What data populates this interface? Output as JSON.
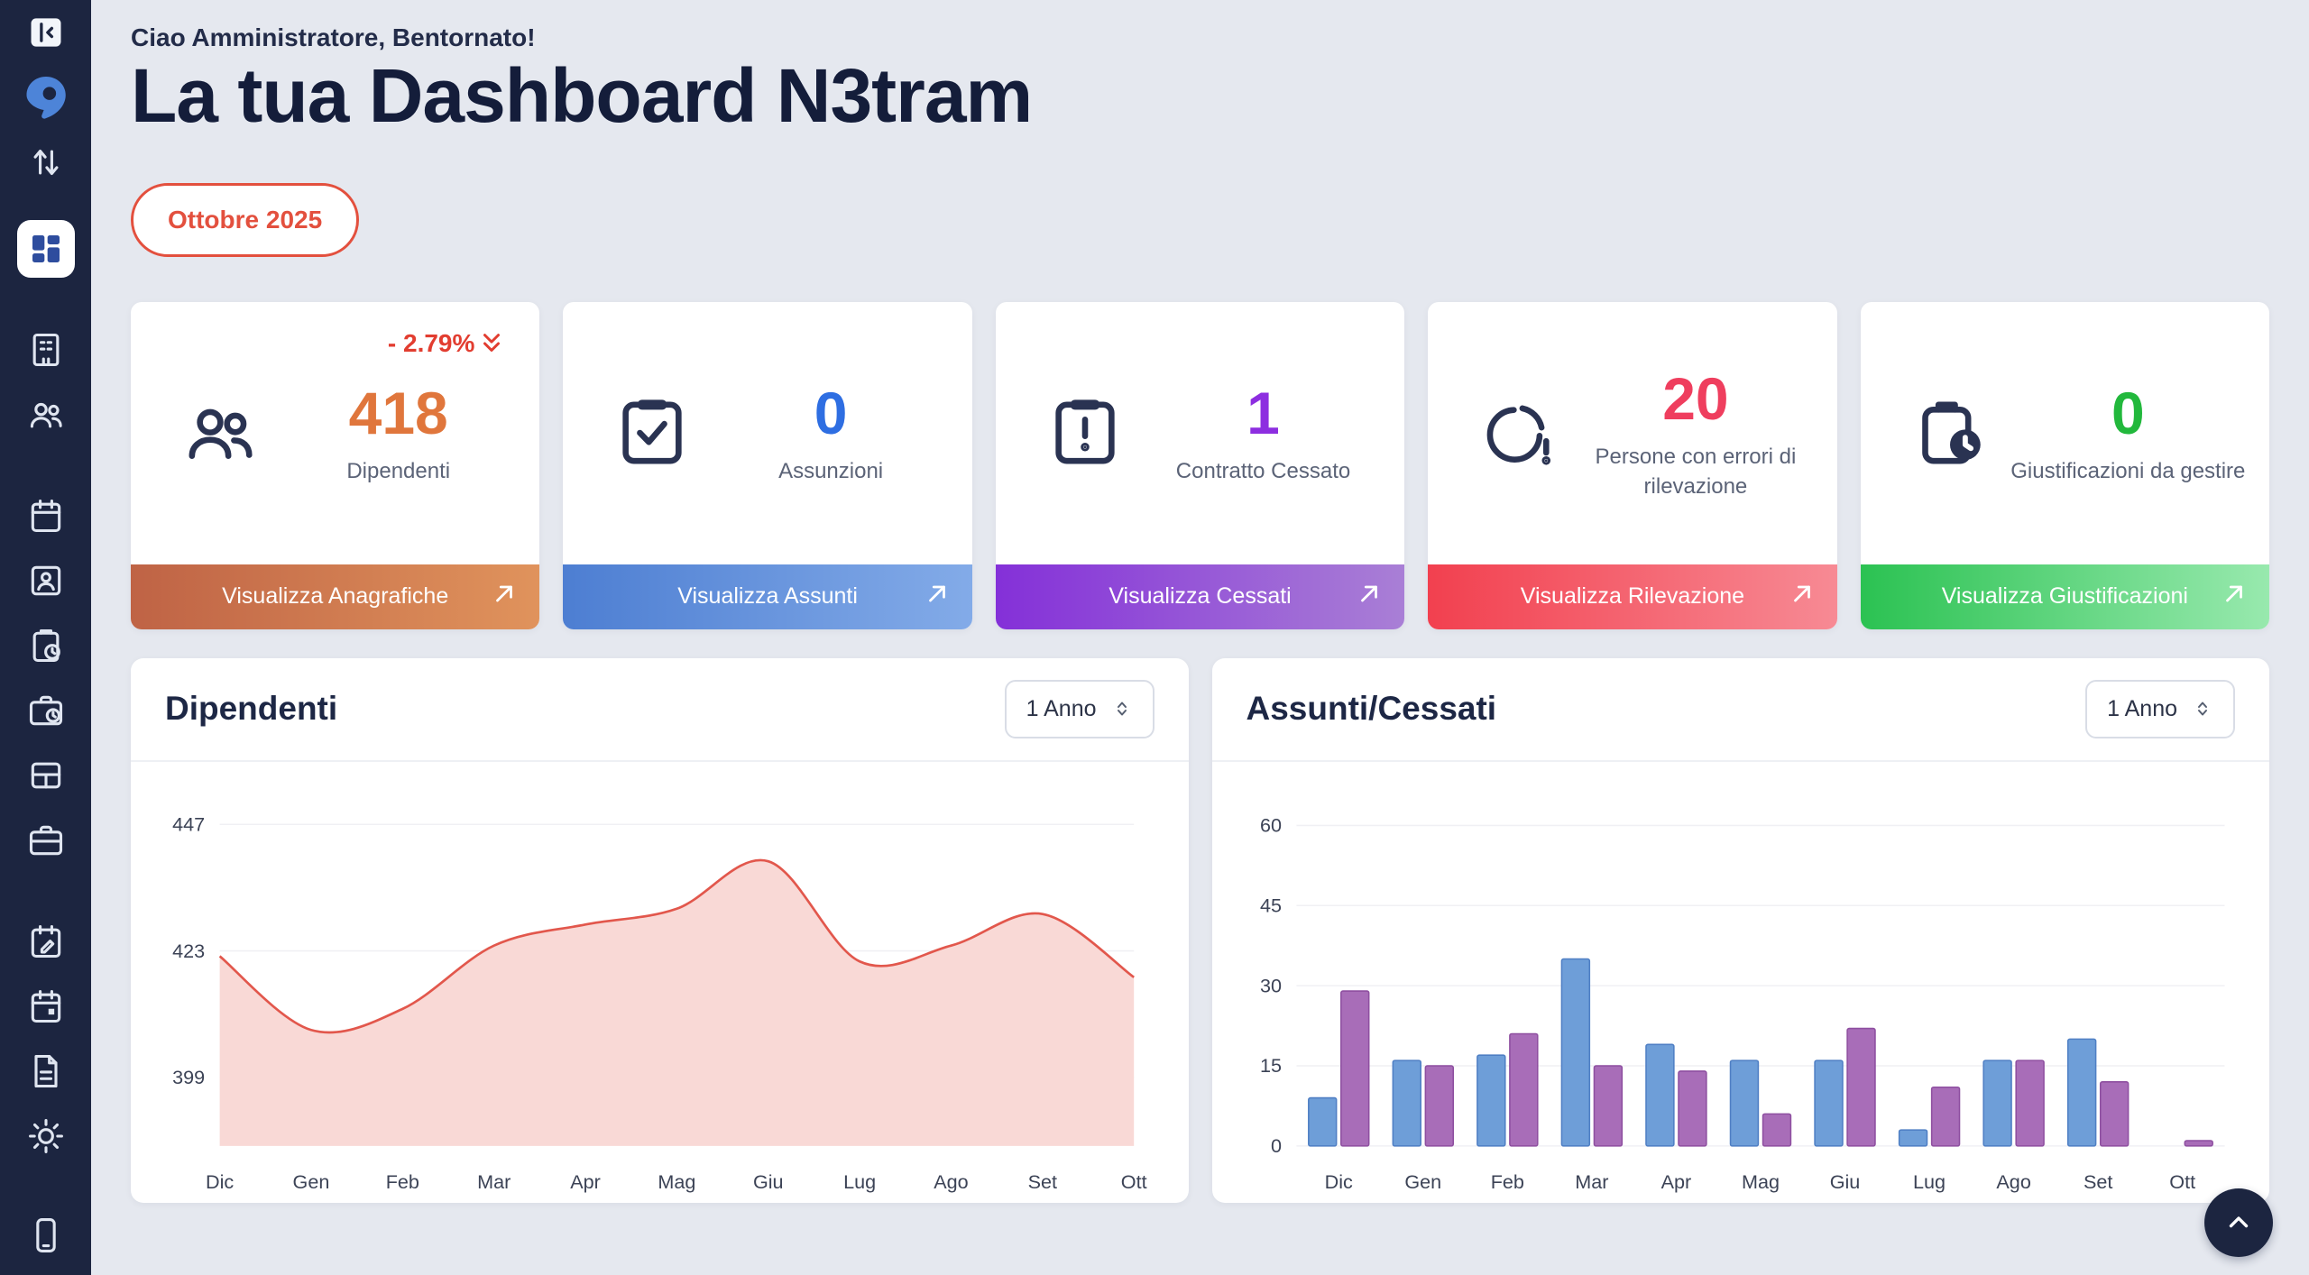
{
  "sidebar": {
    "icon_names": [
      "collapse-sidebar-icon",
      "logo-icon",
      "swap-vertical-icon",
      "dashboard-icon",
      "company-icon",
      "employees-icon",
      "calendar-icon",
      "id-badge-icon",
      "clipboard-clock-icon",
      "work-history-icon",
      "table-layout-icon",
      "briefcase-icon",
      "calendar-edit-icon",
      "calendar-event-icon",
      "document-icon",
      "sun-icon",
      "mobile-icon"
    ],
    "active_item": "dashboard"
  },
  "header": {
    "greeting": "Ciao Amministratore, Bentornato!",
    "title": "La tua Dashboard N3tram",
    "period_badge": "Ottobre 2025"
  },
  "stat_cards": [
    {
      "delta": "- 2.79%",
      "delta_color": "#e23d30",
      "value": "418",
      "label": "Dipendenti",
      "action": "Visualizza Anagrafiche",
      "value_color": "#e0763c",
      "footer_from": "#bf6345",
      "footer_to": "#e0935c",
      "icon": "people-icon"
    },
    {
      "value": "0",
      "label": "Assunzioni",
      "action": "Visualizza Assunti",
      "value_color": "#2e6ee2",
      "footer_from": "#4d7ed2",
      "footer_to": "#83abe8",
      "icon": "clipboard-check-icon"
    },
    {
      "value": "1",
      "label": "Contratto Cessato",
      "action": "Visualizza Cessati",
      "value_color": "#8d2ee0",
      "footer_from": "#8430d8",
      "footer_to": "#a97fd6",
      "icon": "clipboard-alert-icon"
    },
    {
      "value": "20",
      "label": "Persone con errori di rilevazione",
      "action": "Visualizza Rilevazione",
      "value_color": "#ef3e5e",
      "footer_from": "#f2404f",
      "footer_to": "#f78a94",
      "icon": "pie-alert-icon"
    },
    {
      "value": "0",
      "label": "Giustificazioni da gestire",
      "action": "Visualizza Giustificazioni",
      "value_color": "#22b83c",
      "footer_from": "#2bc252",
      "footer_to": "#98e9ae",
      "icon": "clipboard-clock-icon"
    }
  ],
  "chart_data": [
    {
      "type": "area",
      "title": "Dipendenti",
      "period_selector": "1 Anno",
      "x": [
        "Dic",
        "Gen",
        "Feb",
        "Mar",
        "Apr",
        "Mag",
        "Giu",
        "Lug",
        "Ago",
        "Set",
        "Ott"
      ],
      "series": [
        {
          "name": "Dipendenti",
          "values": [
            422,
            408,
            412,
            424,
            428,
            431,
            440,
            421,
            424,
            430,
            418
          ]
        }
      ],
      "yticks": [
        399,
        423,
        447
      ],
      "ylim": [
        386,
        452
      ],
      "grid": true,
      "legend": "none",
      "line_color": "#e2574c",
      "fill_color": "#f9d9d6"
    },
    {
      "type": "bar",
      "title": "Assunti/Cessati",
      "period_selector": "1 Anno",
      "categories": [
        "Dic",
        "Gen",
        "Feb",
        "Mar",
        "Apr",
        "Mag",
        "Giu",
        "Lug",
        "Ago",
        "Set",
        "Ott"
      ],
      "series": [
        {
          "name": "Assunti",
          "color": "#6e9ed8",
          "border": "#4f7fc4",
          "values": [
            9,
            16,
            17,
            35,
            19,
            16,
            16,
            3,
            16,
            20,
            0
          ]
        },
        {
          "name": "Cessati",
          "color": "#a86db8",
          "border": "#8e4fa0",
          "values": [
            29,
            15,
            21,
            15,
            14,
            6,
            22,
            11,
            16,
            12,
            1
          ]
        }
      ],
      "yticks": [
        0,
        15,
        30,
        45,
        60
      ],
      "ylim": [
        0,
        66
      ],
      "grid": true,
      "legend": "none"
    }
  ],
  "scroll_top": {
    "icon": "chevron-up-icon"
  }
}
